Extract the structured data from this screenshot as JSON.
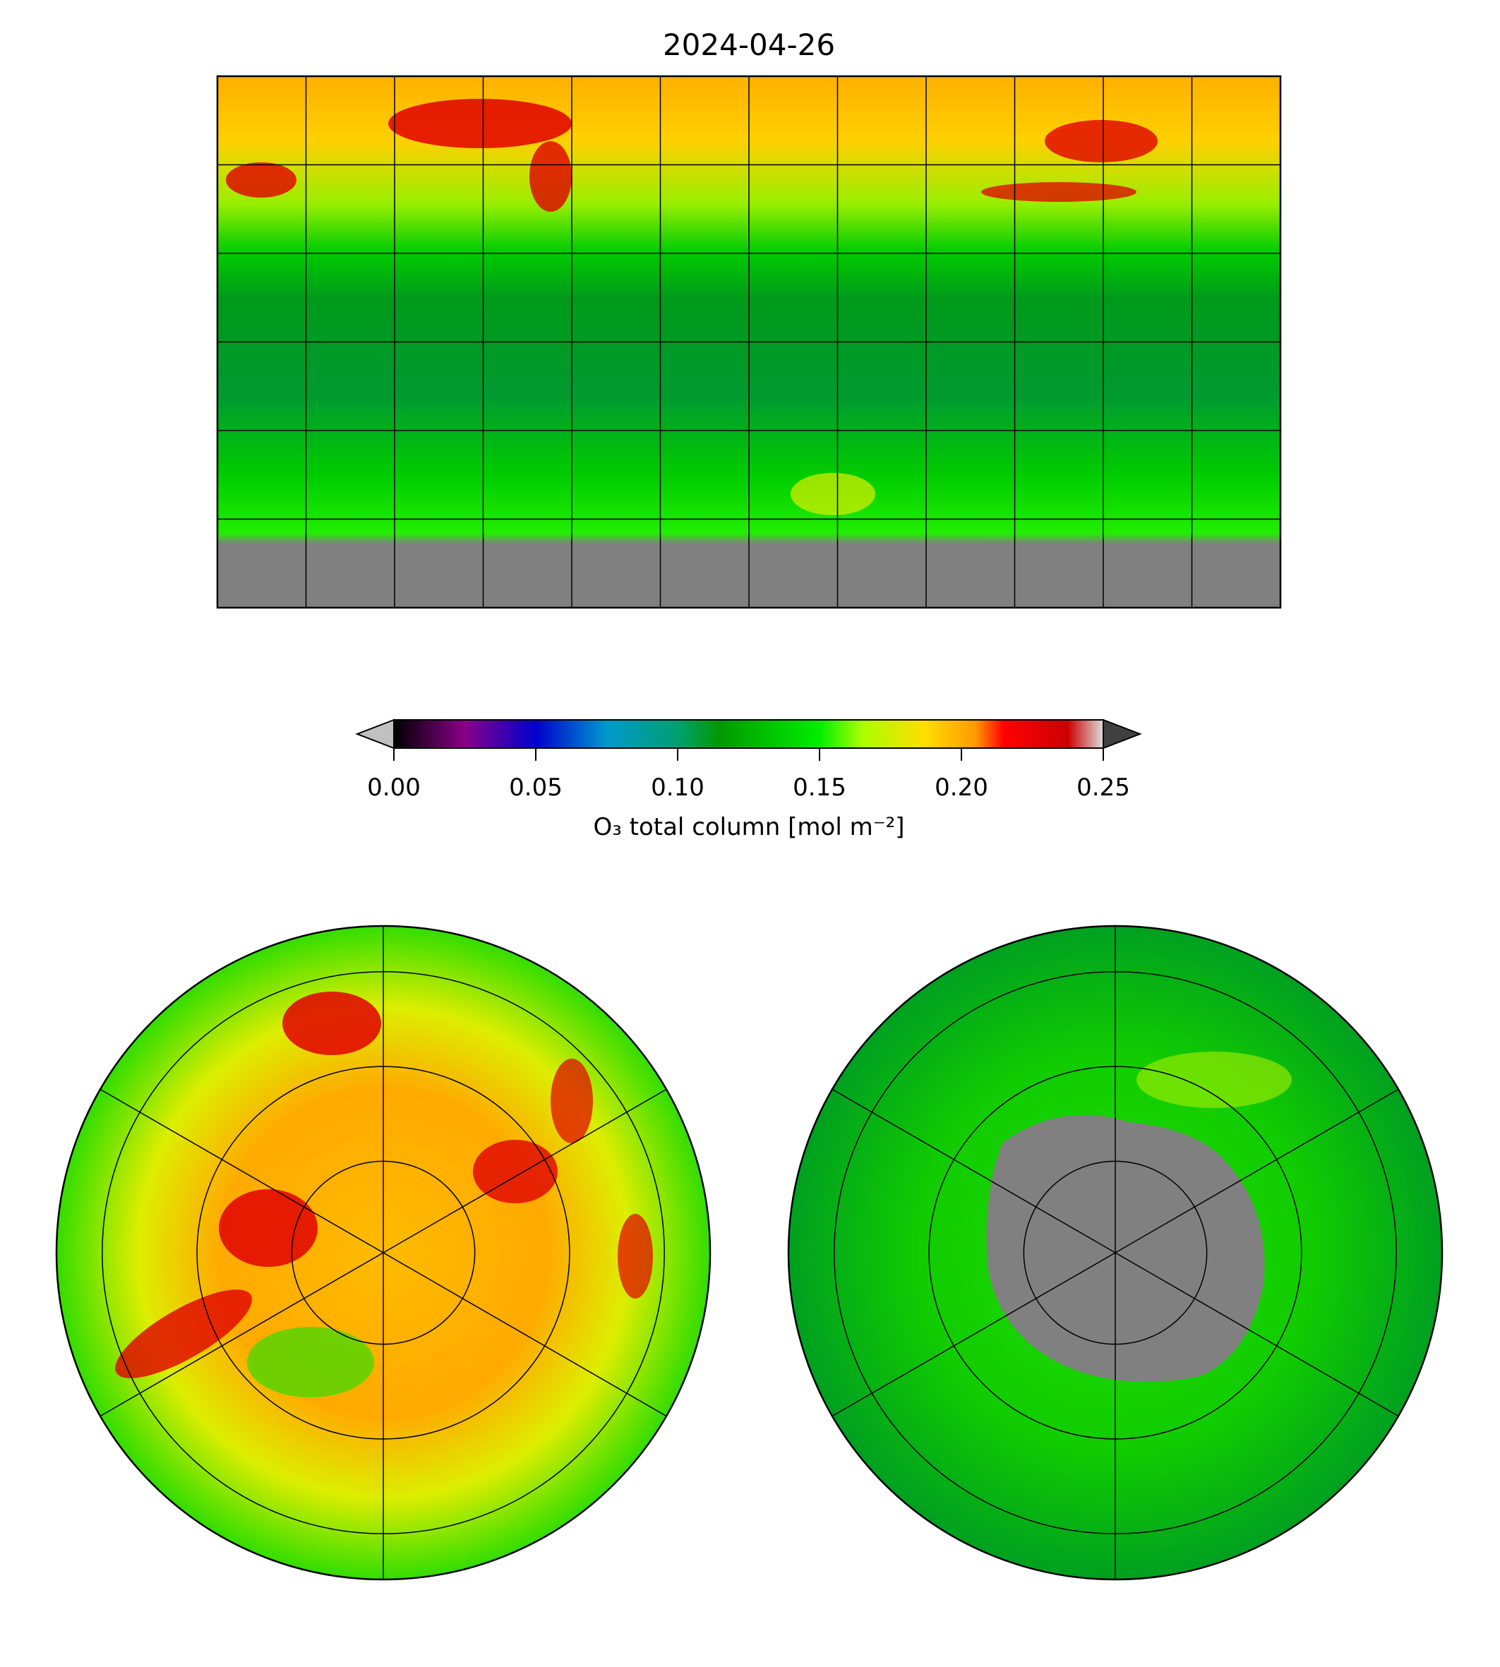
{
  "chart_data": {
    "type": "heatmap",
    "title": "2024-04-26",
    "colorbar": {
      "label": "O₃ total column [mol m⁻²]",
      "ticks": [
        "0.00",
        "0.05",
        "0.10",
        "0.15",
        "0.20",
        "0.25"
      ],
      "range": [
        0.0,
        0.25
      ],
      "extend": "both",
      "stops": [
        "#000000",
        "#880088",
        "#0000cc",
        "#0099cc",
        "#009900",
        "#00ee00",
        "#aaff00",
        "#ffdd00",
        "#ff9900",
        "#ff0000",
        "#cc0000",
        "#dddddd"
      ]
    },
    "grid": {
      "lon_step_deg": 30,
      "lat_step_deg": 30
    },
    "colors": {
      "missing": "#808080",
      "low": "#009900",
      "mid": "#00dd00",
      "high": "#ffcc00",
      "very_high": "#ee0000"
    }
  }
}
